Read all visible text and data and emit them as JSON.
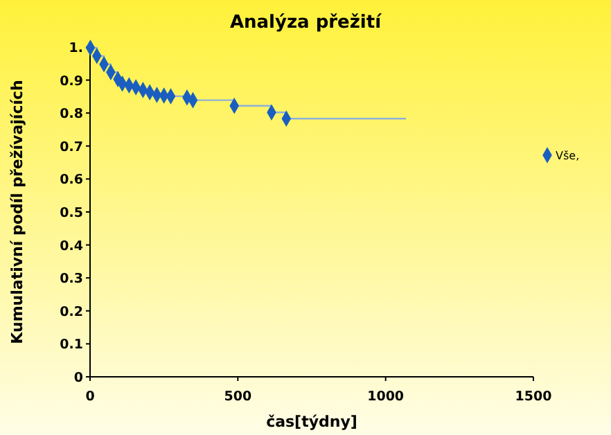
{
  "chart_data": {
    "type": "scatter",
    "title": "Analýza přežití",
    "xlabel": "čas[týdny]",
    "ylabel": "Kumulativní podíl přežívajících",
    "xlim": [
      0,
      1500
    ],
    "xticks": [
      0,
      500,
      1000,
      1500
    ],
    "ylim": [
      0,
      1
    ],
    "yticks": [
      0,
      0.1,
      0.2,
      0.3,
      0.4,
      0.5,
      0.6,
      0.7,
      0.8,
      0.9,
      {
        "value": 1,
        "label": "1."
      }
    ],
    "grid": false,
    "legend": "right",
    "series": [
      {
        "type": "step",
        "color": "#8fb0d8",
        "marker": "none",
        "x": [
          0,
          1,
          23,
          47,
          70,
          94,
          109,
          132,
          155,
          179,
          202,
          226,
          250,
          273,
          328,
          348,
          488,
          614,
          664,
          1069
        ],
        "values": [
          1,
          0.998,
          0.973,
          0.948,
          0.924,
          0.903,
          0.889,
          0.884,
          0.878,
          0.87,
          0.863,
          0.855,
          0.853,
          0.851,
          0.847,
          0.839,
          0.822,
          0.802,
          0.783,
          0.783
        ]
      },
      {
        "type": "scatter",
        "name": "Vše,",
        "color": "#1a5fc0",
        "marker": "diamond",
        "x": [
          1,
          23,
          47,
          70,
          94,
          109,
          132,
          155,
          179,
          202,
          226,
          250,
          273,
          328,
          348,
          488,
          614,
          664
        ],
        "values": [
          0.998,
          0.973,
          0.948,
          0.924,
          0.903,
          0.889,
          0.884,
          0.878,
          0.87,
          0.863,
          0.855,
          0.853,
          0.851,
          0.847,
          0.839,
          0.822,
          0.802,
          0.783
        ]
      }
    ]
  }
}
